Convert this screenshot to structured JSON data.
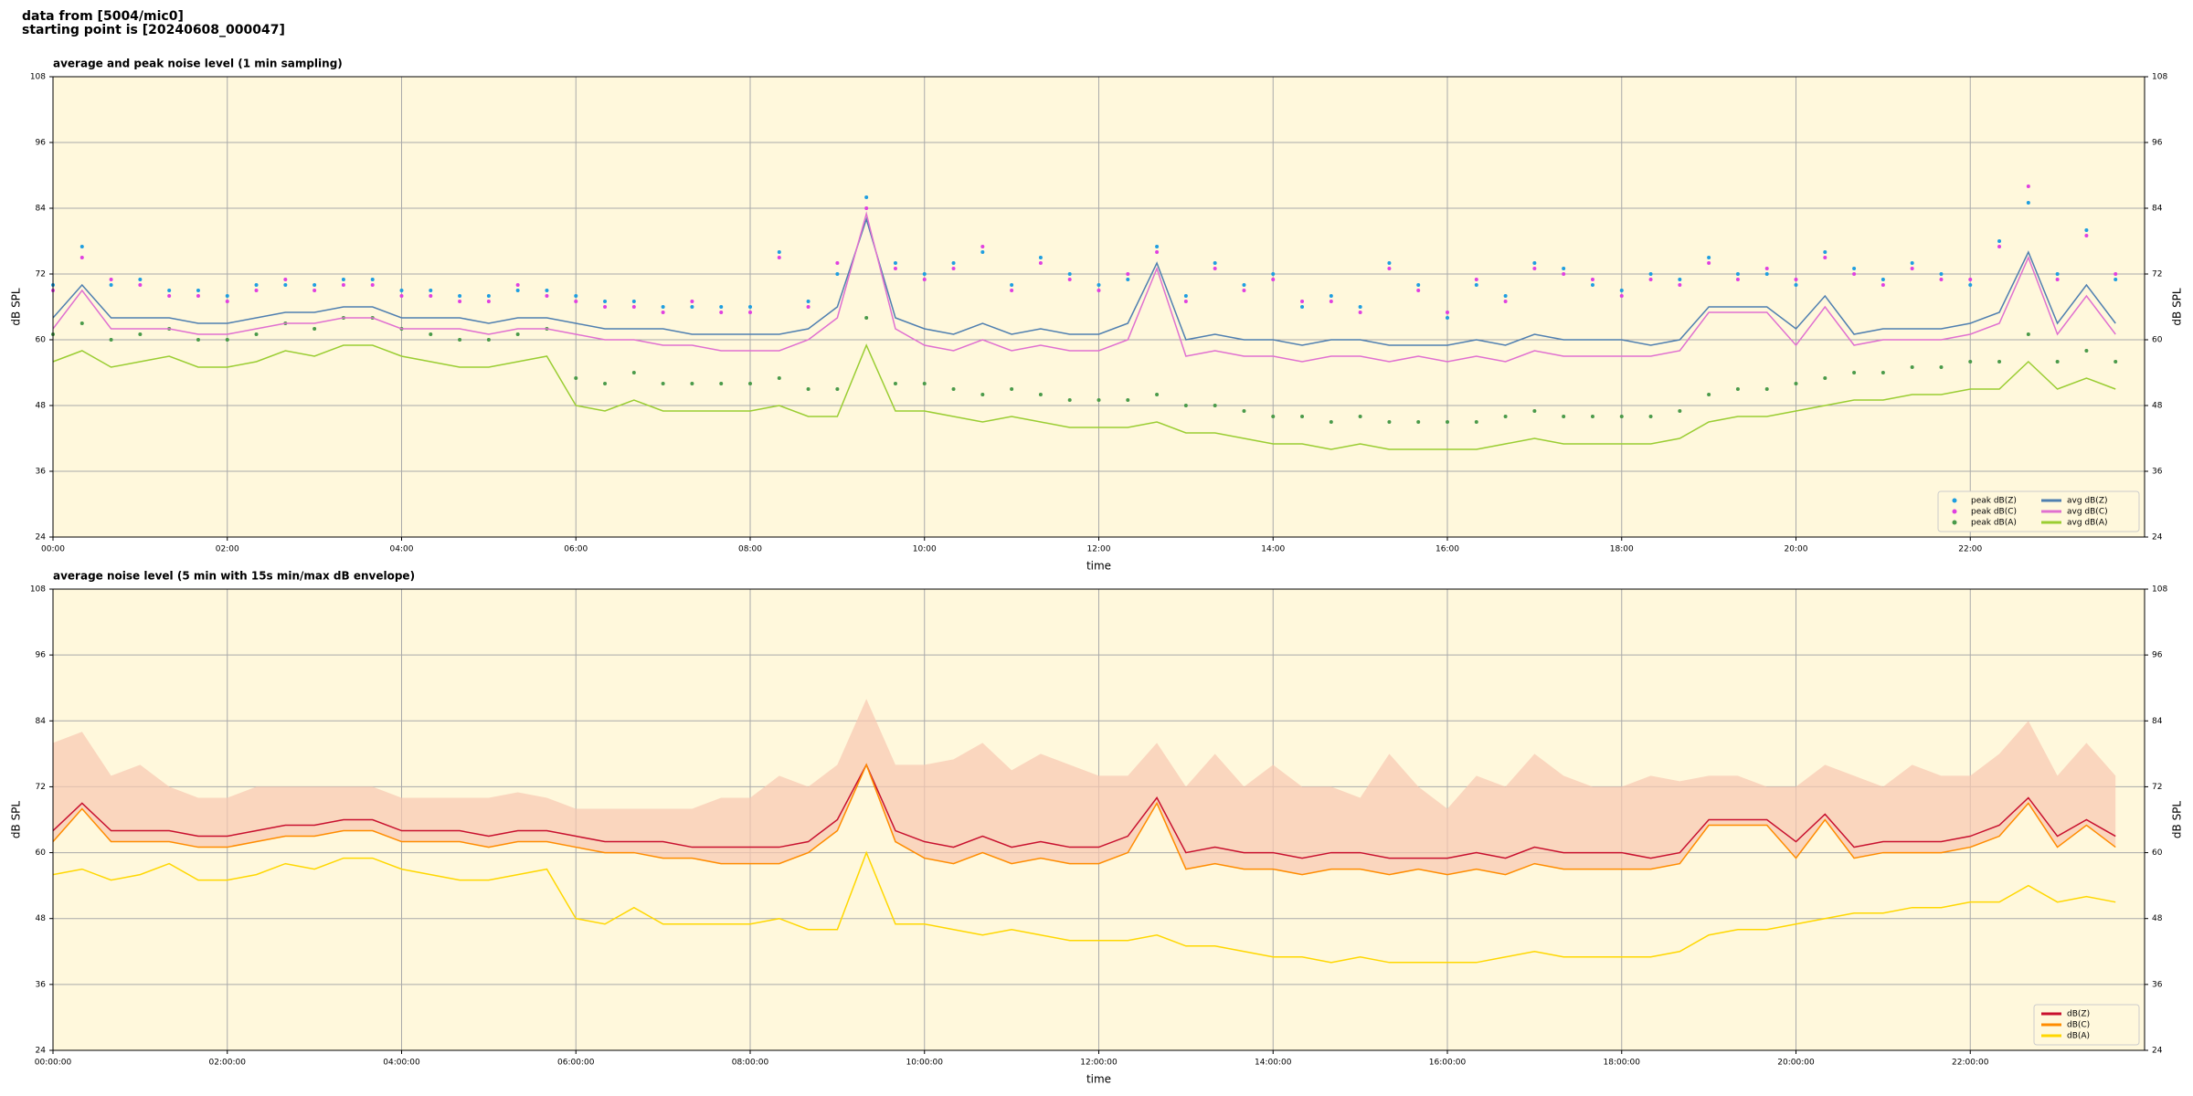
{
  "heading": [
    "data from [5004/mic0]",
    "starting point is [20240608_000047]"
  ],
  "chart_data": [
    {
      "type": "line",
      "title": "average and peak noise level (1 min sampling)",
      "xlabel": "time",
      "ylabel": "dB SPL",
      "y2label": "dB SPL",
      "x": [
        0,
        20,
        40,
        60,
        80,
        100,
        120,
        140,
        160,
        180,
        200,
        220,
        240,
        260,
        280,
        300,
        320,
        340,
        360,
        380,
        400,
        420,
        440,
        460,
        480,
        500,
        520,
        540,
        560,
        580,
        600,
        620,
        640,
        660,
        680,
        700,
        720,
        740,
        760,
        780,
        800,
        820,
        840,
        860,
        880,
        900,
        920,
        940,
        960,
        980,
        1000,
        1020,
        1040,
        1060,
        1080,
        1100,
        1120,
        1140,
        1160,
        1180,
        1200,
        1220,
        1240,
        1260,
        1280,
        1300,
        1320,
        1340,
        1360,
        1380,
        1400,
        1420
      ],
      "xlim": [
        0,
        1440
      ],
      "xticks": [
        {
          "value": 0,
          "label": "00:00"
        },
        {
          "value": 120,
          "label": "02:00"
        },
        {
          "value": 240,
          "label": "04:00"
        },
        {
          "value": 360,
          "label": "06:00"
        },
        {
          "value": 480,
          "label": "08:00"
        },
        {
          "value": 600,
          "label": "10:00"
        },
        {
          "value": 720,
          "label": "12:00"
        },
        {
          "value": 840,
          "label": "14:00"
        },
        {
          "value": 960,
          "label": "16:00"
        },
        {
          "value": 1080,
          "label": "18:00"
        },
        {
          "value": 1200,
          "label": "20:00"
        },
        {
          "value": 1320,
          "label": "22:00"
        }
      ],
      "ylim": [
        24,
        108
      ],
      "yticks": [
        24,
        36,
        48,
        60,
        72,
        84,
        96,
        108
      ],
      "grid": true,
      "legend": "lower right",
      "legend_columns": 2,
      "series": [
        {
          "name": "peak dB(Z)",
          "style": "dots",
          "color": "#1f9ee0",
          "values": [
            70,
            77,
            70,
            71,
            69,
            69,
            68,
            70,
            70,
            70,
            71,
            71,
            69,
            69,
            68,
            68,
            69,
            69,
            68,
            67,
            67,
            66,
            66,
            66,
            66,
            76,
            67,
            72,
            86,
            74,
            72,
            74,
            76,
            70,
            75,
            72,
            70,
            71,
            77,
            68,
            74,
            70,
            72,
            66,
            68,
            66,
            74,
            70,
            64,
            70,
            68,
            74,
            73,
            70,
            69,
            72,
            71,
            75,
            72,
            72,
            70,
            76,
            73,
            71,
            74,
            72,
            70,
            78,
            85,
            72,
            80,
            71
          ]
        },
        {
          "name": "peak dB(C)",
          "style": "dots",
          "color": "#e040e0",
          "values": [
            69,
            75,
            71,
            70,
            68,
            68,
            67,
            69,
            71,
            69,
            70,
            70,
            68,
            68,
            67,
            67,
            70,
            68,
            67,
            66,
            66,
            65,
            67,
            65,
            65,
            75,
            66,
            74,
            84,
            73,
            71,
            73,
            77,
            69,
            74,
            71,
            69,
            72,
            76,
            67,
            73,
            69,
            71,
            67,
            67,
            65,
            73,
            69,
            65,
            71,
            67,
            73,
            72,
            71,
            68,
            71,
            70,
            74,
            71,
            73,
            71,
            75,
            72,
            70,
            73,
            71,
            71,
            77,
            88,
            71,
            79,
            72
          ]
        },
        {
          "name": "peak dB(A)",
          "style": "dots",
          "color": "#4a9a4a",
          "values": [
            61,
            63,
            60,
            61,
            62,
            60,
            60,
            61,
            63,
            62,
            64,
            64,
            62,
            61,
            60,
            60,
            61,
            62,
            53,
            52,
            54,
            52,
            52,
            52,
            52,
            53,
            51,
            51,
            64,
            52,
            52,
            51,
            50,
            51,
            50,
            49,
            49,
            49,
            50,
            48,
            48,
            47,
            46,
            46,
            45,
            46,
            45,
            45,
            45,
            45,
            46,
            47,
            46,
            46,
            46,
            46,
            47,
            50,
            51,
            51,
            52,
            53,
            54,
            54,
            55,
            55,
            56,
            56,
            61,
            56,
            58,
            56
          ]
        },
        {
          "name": "avg dB(Z)",
          "style": "line",
          "color": "#4f7fb0",
          "values": [
            64,
            70,
            64,
            64,
            64,
            63,
            63,
            64,
            65,
            65,
            66,
            66,
            64,
            64,
            64,
            63,
            64,
            64,
            63,
            62,
            62,
            62,
            61,
            61,
            61,
            61,
            62,
            66,
            82,
            64,
            62,
            61,
            63,
            61,
            62,
            61,
            61,
            63,
            74,
            60,
            61,
            60,
            60,
            59,
            60,
            60,
            59,
            59,
            59,
            60,
            59,
            61,
            60,
            60,
            60,
            59,
            60,
            66,
            66,
            66,
            62,
            68,
            61,
            62,
            62,
            62,
            63,
            65,
            76,
            63,
            70,
            63
          ]
        },
        {
          "name": "avg dB(C)",
          "style": "line",
          "color": "#e070d0",
          "values": [
            62,
            69,
            62,
            62,
            62,
            61,
            61,
            62,
            63,
            63,
            64,
            64,
            62,
            62,
            62,
            61,
            62,
            62,
            61,
            60,
            60,
            59,
            59,
            58,
            58,
            58,
            60,
            64,
            83,
            62,
            59,
            58,
            60,
            58,
            59,
            58,
            58,
            60,
            73,
            57,
            58,
            57,
            57,
            56,
            57,
            57,
            56,
            57,
            56,
            57,
            56,
            58,
            57,
            57,
            57,
            57,
            58,
            65,
            65,
            65,
            59,
            66,
            59,
            60,
            60,
            60,
            61,
            63,
            75,
            61,
            68,
            61
          ]
        },
        {
          "name": "avg dB(A)",
          "style": "line",
          "color": "#9acd32",
          "values": [
            56,
            58,
            55,
            56,
            57,
            55,
            55,
            56,
            58,
            57,
            59,
            59,
            57,
            56,
            55,
            55,
            56,
            57,
            48,
            47,
            49,
            47,
            47,
            47,
            47,
            48,
            46,
            46,
            59,
            47,
            47,
            46,
            45,
            46,
            45,
            44,
            44,
            44,
            45,
            43,
            43,
            42,
            41,
            41,
            40,
            41,
            40,
            40,
            40,
            40,
            41,
            42,
            41,
            41,
            41,
            41,
            42,
            45,
            46,
            46,
            47,
            48,
            49,
            49,
            50,
            50,
            51,
            51,
            56,
            51,
            53,
            51
          ]
        }
      ]
    },
    {
      "type": "line",
      "title": "average noise level (5 min with 15s min/max dB envelope)",
      "xlabel": "time",
      "ylabel": "dB SPL",
      "y2label": "dB SPL",
      "x": [
        0,
        20,
        40,
        60,
        80,
        100,
        120,
        140,
        160,
        180,
        200,
        220,
        240,
        260,
        280,
        300,
        320,
        340,
        360,
        380,
        400,
        420,
        440,
        460,
        480,
        500,
        520,
        540,
        560,
        580,
        600,
        620,
        640,
        660,
        680,
        700,
        720,
        740,
        760,
        780,
        800,
        820,
        840,
        860,
        880,
        900,
        920,
        940,
        960,
        980,
        1000,
        1020,
        1040,
        1060,
        1080,
        1100,
        1120,
        1140,
        1160,
        1180,
        1200,
        1220,
        1240,
        1260,
        1280,
        1300,
        1320,
        1340,
        1360,
        1380,
        1400,
        1420
      ],
      "xlim": [
        0,
        1440
      ],
      "xticks": [
        {
          "value": 0,
          "label": "00:00:00"
        },
        {
          "value": 120,
          "label": "02:00:00"
        },
        {
          "value": 240,
          "label": "04:00:00"
        },
        {
          "value": 360,
          "label": "06:00:00"
        },
        {
          "value": 480,
          "label": "08:00:00"
        },
        {
          "value": 600,
          "label": "10:00:00"
        },
        {
          "value": 720,
          "label": "12:00:00"
        },
        {
          "value": 840,
          "label": "14:00:00"
        },
        {
          "value": 960,
          "label": "16:00:00"
        },
        {
          "value": 1080,
          "label": "18:00:00"
        },
        {
          "value": 1200,
          "label": "20:00:00"
        },
        {
          "value": 1320,
          "label": "22:00:00"
        }
      ],
      "ylim": [
        24,
        108
      ],
      "yticks": [
        24,
        36,
        48,
        60,
        72,
        84,
        96,
        108
      ],
      "grid": true,
      "legend": "lower right",
      "legend_columns": 1,
      "envelope": {
        "color": "#f8c8b0",
        "max": [
          80,
          82,
          74,
          76,
          72,
          70,
          70,
          72,
          72,
          72,
          72,
          72,
          70,
          70,
          70,
          70,
          71,
          70,
          68,
          68,
          68,
          68,
          68,
          70,
          70,
          74,
          72,
          76,
          88,
          76,
          76,
          77,
          80,
          75,
          78,
          76,
          74,
          74,
          80,
          72,
          78,
          72,
          76,
          72,
          72,
          70,
          78,
          72,
          68,
          74,
          72,
          78,
          74,
          72,
          72,
          74,
          73,
          74,
          74,
          72,
          72,
          76,
          74,
          72,
          76,
          74,
          74,
          78,
          84,
          74,
          80,
          74
        ]
      },
      "series": [
        {
          "name": "dB(Z)",
          "style": "line",
          "color": "#c8102e",
          "values": [
            64,
            69,
            64,
            64,
            64,
            63,
            63,
            64,
            65,
            65,
            66,
            66,
            64,
            64,
            64,
            63,
            64,
            64,
            63,
            62,
            62,
            62,
            61,
            61,
            61,
            61,
            62,
            66,
            76,
            64,
            62,
            61,
            63,
            61,
            62,
            61,
            61,
            63,
            70,
            60,
            61,
            60,
            60,
            59,
            60,
            60,
            59,
            59,
            59,
            60,
            59,
            61,
            60,
            60,
            60,
            59,
            60,
            66,
            66,
            66,
            62,
            67,
            61,
            62,
            62,
            62,
            63,
            65,
            70,
            63,
            66,
            63
          ]
        },
        {
          "name": "dB(C)",
          "style": "line",
          "color": "#ff8c00",
          "values": [
            62,
            68,
            62,
            62,
            62,
            61,
            61,
            62,
            63,
            63,
            64,
            64,
            62,
            62,
            62,
            61,
            62,
            62,
            61,
            60,
            60,
            59,
            59,
            58,
            58,
            58,
            60,
            64,
            76,
            62,
            59,
            58,
            60,
            58,
            59,
            58,
            58,
            60,
            69,
            57,
            58,
            57,
            57,
            56,
            57,
            57,
            56,
            57,
            56,
            57,
            56,
            58,
            57,
            57,
            57,
            57,
            58,
            65,
            65,
            65,
            59,
            66,
            59,
            60,
            60,
            60,
            61,
            63,
            69,
            61,
            65,
            61
          ]
        },
        {
          "name": "dB(A)",
          "style": "line",
          "color": "#ffd700",
          "values": [
            56,
            57,
            55,
            56,
            58,
            55,
            55,
            56,
            58,
            57,
            59,
            59,
            57,
            56,
            55,
            55,
            56,
            57,
            48,
            47,
            50,
            47,
            47,
            47,
            47,
            48,
            46,
            46,
            60,
            47,
            47,
            46,
            45,
            46,
            45,
            44,
            44,
            44,
            45,
            43,
            43,
            42,
            41,
            41,
            40,
            41,
            40,
            40,
            40,
            40,
            41,
            42,
            41,
            41,
            41,
            41,
            42,
            45,
            46,
            46,
            47,
            48,
            49,
            49,
            50,
            50,
            51,
            51,
            54,
            51,
            52,
            51
          ]
        }
      ]
    }
  ]
}
